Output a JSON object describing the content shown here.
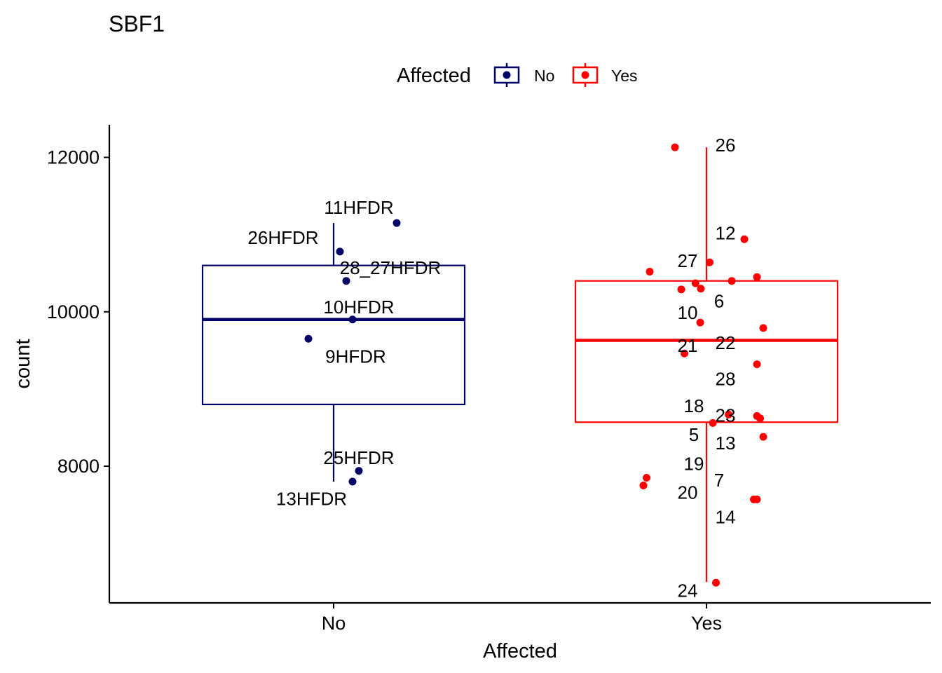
{
  "chart_data": {
    "type": "boxplot",
    "title": "SBF1",
    "xlabel": "Affected",
    "ylabel": "count",
    "legend": {
      "title": "Affected",
      "position": "top",
      "entries": [
        {
          "label": "No",
          "color": "#000066"
        },
        {
          "label": "Yes",
          "color": "#ff0000"
        }
      ]
    },
    "ylim": [
      6300,
      12400
    ],
    "y_ticks": [
      8000,
      10000,
      12000
    ],
    "categories": [
      "No",
      "Yes"
    ],
    "groups": [
      {
        "name": "No",
        "color": "#000066",
        "box": {
          "whisker_low": 7800,
          "q1": 8800,
          "median": 9900,
          "q3": 10600,
          "whisker_high": 11150
        },
        "points": [
          {
            "label": "11HFDR",
            "x": 0.2,
            "y": 11150,
            "lx": 0.08,
            "ly": 11350
          },
          {
            "label": "26HFDR",
            "x": 0.02,
            "y": 10780,
            "lx": -0.16,
            "ly": 10960
          },
          {
            "label": "28_27HFDR",
            "x": 0.04,
            "y": 10400,
            "lx": 0.18,
            "ly": 10570
          },
          {
            "label": "10HFDR",
            "x": 0.06,
            "y": 9900,
            "lx": 0.08,
            "ly": 10060
          },
          {
            "label": "9HFDR",
            "x": -0.08,
            "y": 9650,
            "lx": 0.07,
            "ly": 9420
          },
          {
            "label": "25HFDR",
            "x": 0.08,
            "y": 7940,
            "lx": 0.08,
            "ly": 8110
          },
          {
            "label": "13HFDR",
            "x": 0.06,
            "y": 7800,
            "lx": -0.07,
            "ly": 7580
          }
        ]
      },
      {
        "name": "Yes",
        "color": "#ff0000",
        "box": {
          "whisker_low": 6500,
          "q1": 8570,
          "median": 9630,
          "q3": 10400,
          "whisker_high": 12130
        },
        "points": [
          {
            "label": "26",
            "x": -0.1,
            "y": 12130,
            "lx": 0.06,
            "ly": 12160
          },
          {
            "label": "12",
            "x": 0.12,
            "y": 10940,
            "lx": 0.06,
            "ly": 11020
          },
          {
            "label": "27",
            "x": 0.01,
            "y": 10640,
            "lx": -0.06,
            "ly": 10660
          },
          {
            "label": "6",
            "x": 0.08,
            "y": 10400,
            "lx": 0.04,
            "ly": 10140
          },
          {
            "label": "10",
            "x": -0.02,
            "y": 9860,
            "lx": -0.06,
            "ly": 9990
          },
          {
            "label": "22",
            "x": 0.18,
            "y": 9790,
            "lx": 0.06,
            "ly": 9600
          },
          {
            "label": "21",
            "x": -0.07,
            "y": 9460,
            "lx": -0.06,
            "ly": 9560
          },
          {
            "label": "28",
            "x": 0.16,
            "y": 9320,
            "lx": 0.06,
            "ly": 9130
          },
          {
            "label": "18",
            "x": 0.07,
            "y": 8670,
            "lx": -0.04,
            "ly": 8780
          },
          {
            "label": "23",
            "x": 0.16,
            "y": 8650,
            "lx": 0.06,
            "ly": 8660
          },
          {
            "label": "5",
            "x": 0.02,
            "y": 8560,
            "lx": -0.04,
            "ly": 8410
          },
          {
            "label": "13",
            "x": 0.18,
            "y": 8380,
            "lx": 0.06,
            "ly": 8300
          },
          {
            "label": "19",
            "x": -0.19,
            "y": 7850,
            "lx": -0.04,
            "ly": 8030
          },
          {
            "label": "7",
            "x": -0.2,
            "y": 7750,
            "lx": 0.04,
            "ly": 7820
          },
          {
            "label": "20",
            "x": 0.16,
            "y": 7570,
            "lx": -0.06,
            "ly": 7660
          },
          {
            "label": "14",
            "x": 0.15,
            "y": 7570,
            "lx": 0.06,
            "ly": 7340
          },
          {
            "label": "24",
            "x": 0.03,
            "y": 6490,
            "lx": -0.06,
            "ly": 6390
          }
        ],
        "unlabeled_points": [
          {
            "x": -0.18,
            "y": 10520
          },
          {
            "x": -0.08,
            "y": 10290
          },
          {
            "x": -0.035,
            "y": 10370
          },
          {
            "x": -0.018,
            "y": 10300
          },
          {
            "x": 0.16,
            "y": 10450
          },
          {
            "x": 0.17,
            "y": 8620
          }
        ]
      }
    ]
  }
}
